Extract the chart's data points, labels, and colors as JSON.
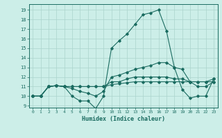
{
  "xlabel": "Humidex (Indice chaleur)",
  "bg_color": "#cceee8",
  "grid_color": "#aad4cc",
  "line_color": "#1a6b60",
  "xlim": [
    -0.5,
    23.5
  ],
  "ylim": [
    8.8,
    19.6
  ],
  "yticks": [
    9,
    10,
    11,
    12,
    13,
    14,
    15,
    16,
    17,
    18,
    19
  ],
  "xticks": [
    0,
    1,
    2,
    3,
    4,
    5,
    6,
    7,
    8,
    9,
    10,
    11,
    12,
    13,
    14,
    15,
    16,
    17,
    18,
    19,
    20,
    21,
    22,
    23
  ],
  "series": [
    {
      "x": [
        0,
        1,
        2,
        3,
        4,
        5,
        6,
        7,
        8,
        9,
        10,
        11,
        12,
        13,
        14,
        15,
        16,
        17,
        18,
        19,
        20,
        21,
        22,
        23
      ],
      "y": [
        10.0,
        10.0,
        11.0,
        11.1,
        11.0,
        10.0,
        9.5,
        9.5,
        8.7,
        10.0,
        15.0,
        15.8,
        16.5,
        17.5,
        18.5,
        18.7,
        19.0,
        16.8,
        13.0,
        10.7,
        9.8,
        10.0,
        10.0,
        11.8
      ]
    },
    {
      "x": [
        0,
        1,
        2,
        3,
        4,
        5,
        6,
        7,
        8,
        9,
        10,
        11,
        12,
        13,
        14,
        15,
        16,
        17,
        18,
        19,
        20,
        21,
        22,
        23
      ],
      "y": [
        10.0,
        10.0,
        11.0,
        11.1,
        11.0,
        10.8,
        10.5,
        10.3,
        10.0,
        10.5,
        12.0,
        12.2,
        12.5,
        12.8,
        13.0,
        13.2,
        13.5,
        13.5,
        13.0,
        12.8,
        11.5,
        11.0,
        11.0,
        11.5
      ]
    },
    {
      "x": [
        0,
        1,
        2,
        3,
        4,
        5,
        6,
        7,
        8,
        9,
        10,
        11,
        12,
        13,
        14,
        15,
        16,
        17,
        18,
        19,
        20,
        21,
        22,
        23
      ],
      "y": [
        10.0,
        10.0,
        11.0,
        11.1,
        11.0,
        11.0,
        11.0,
        11.0,
        11.0,
        11.0,
        11.2,
        11.3,
        11.4,
        11.5,
        11.5,
        11.5,
        11.5,
        11.5,
        11.5,
        11.5,
        11.5,
        11.5,
        11.5,
        11.5
      ]
    },
    {
      "x": [
        0,
        1,
        2,
        3,
        4,
        5,
        6,
        7,
        8,
        9,
        10,
        11,
        12,
        13,
        14,
        15,
        16,
        17,
        18,
        19,
        20,
        21,
        22,
        23
      ],
      "y": [
        10.0,
        10.0,
        11.0,
        11.1,
        11.0,
        11.0,
        11.0,
        11.0,
        11.0,
        11.0,
        11.5,
        11.5,
        11.8,
        12.0,
        12.0,
        12.0,
        12.0,
        12.0,
        11.8,
        11.8,
        11.5,
        11.5,
        11.5,
        11.8
      ]
    }
  ]
}
